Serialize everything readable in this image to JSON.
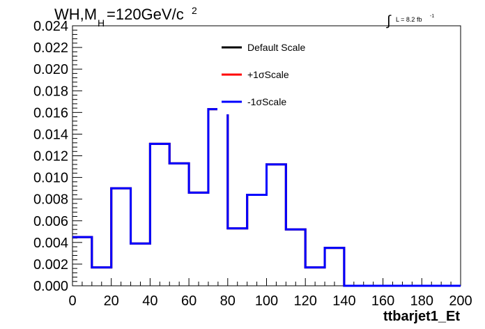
{
  "header": {
    "title_main": "WH,M",
    "title_sub": "H",
    "title_rest": "=120GeV/c",
    "title_sup": "2",
    "lumi_integral": "∫",
    "lumi_text": "L = 8.2 fb",
    "lumi_sup": "-1"
  },
  "legend": {
    "entries": [
      {
        "label": "Default Scale",
        "color": "#000000"
      },
      {
        "label": "+1σScale",
        "color": "#ff0000"
      },
      {
        "label": "-1σScale",
        "color": "#0000ff"
      }
    ]
  },
  "chart_data": {
    "type": "line",
    "subtype": "step-histogram",
    "xlabel": "ttbarjet1_Et",
    "ylabel": "",
    "xlim": [
      0,
      200
    ],
    "ylim": [
      0,
      0.024
    ],
    "x_ticks": [
      "0",
      "20",
      "40",
      "60",
      "80",
      "100",
      "120",
      "140",
      "160",
      "180",
      "200"
    ],
    "y_ticks": [
      "0.000",
      "0.002",
      "0.004",
      "0.006",
      "0.008",
      "0.010",
      "0.012",
      "0.014",
      "0.016",
      "0.018",
      "0.020",
      "0.022",
      "0.024"
    ],
    "bin_edges": [
      0,
      10,
      20,
      30,
      40,
      50,
      60,
      70,
      80,
      90,
      100,
      110,
      120,
      130,
      140,
      150,
      160,
      170,
      180,
      190,
      200
    ],
    "series": [
      {
        "name": "Default Scale",
        "color": "#000000",
        "values": [
          0.0045,
          0.0017,
          0.009,
          0.0039,
          0.0131,
          0.0113,
          0.0086,
          0.0163,
          0.0053,
          0.0084,
          0.0112,
          0.0052,
          0.0017,
          0.0035,
          0,
          0,
          0,
          0,
          0,
          0
        ]
      },
      {
        "name": "+1σScale",
        "color": "#ff0000",
        "values": [
          0.0045,
          0.0017,
          0.009,
          0.0039,
          0.0131,
          0.0113,
          0.0086,
          0.0163,
          0.0053,
          0.0084,
          0.0112,
          0.0052,
          0.0017,
          0.0035,
          0,
          0,
          0,
          0,
          0,
          0
        ]
      },
      {
        "name": "-1σScale",
        "color": "#0000ff",
        "values": [
          0.0045,
          0.0017,
          0.009,
          0.0039,
          0.0131,
          0.0113,
          0.0086,
          0.0163,
          0.0053,
          0.0084,
          0.0112,
          0.0052,
          0.0017,
          0.0035,
          0,
          0,
          0,
          0,
          0,
          0
        ]
      }
    ],
    "grid": false,
    "legend_position": "top-center"
  }
}
